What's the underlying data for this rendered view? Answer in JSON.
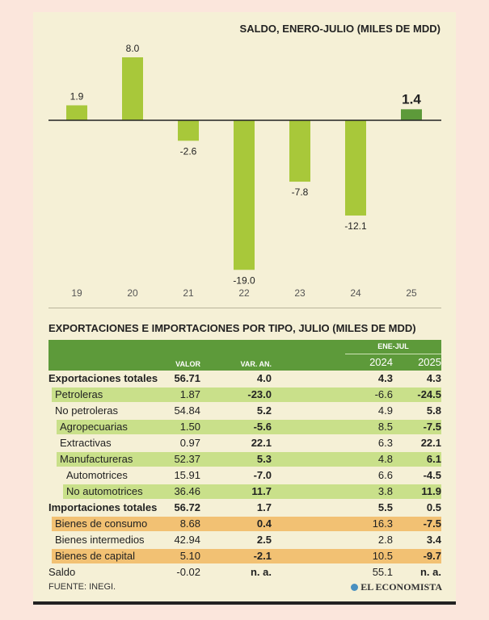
{
  "chart_data": {
    "type": "bar",
    "title": "SALDO, ENERO-JULIO (MILES DE MDD)",
    "categories": [
      "19",
      "20",
      "21",
      "22",
      "23",
      "24",
      "25"
    ],
    "values": [
      1.9,
      8.0,
      -2.6,
      -19.0,
      -7.8,
      -12.1,
      1.4
    ],
    "value_labels": [
      "1.9",
      "8.0",
      "-2.6",
      "-19.0",
      "-7.8",
      "-12.1",
      "1.4"
    ],
    "highlight_index": 6,
    "colors": {
      "bar": "#a8c83a",
      "highlight": "#5d9a3a",
      "axis": "#222222"
    },
    "xlabel": "",
    "ylabel": ""
  },
  "table": {
    "title": "EXPORTACIONES E IMPORTACIONES POR TIPO, JULIO (MILES DE MDD)",
    "group_header": "ENE-JUL",
    "headers": {
      "valor": "VALOR",
      "var": "VAR. AN.",
      "y2024": "2024",
      "y2025": "2025"
    },
    "rows": [
      {
        "label": "Exportaciones totales",
        "valor": "56.71",
        "var": "4.0",
        "y2024": "4.3",
        "y2025": "4.3",
        "style": "total",
        "bg": "none",
        "indent": 0
      },
      {
        "label": "Petroleras",
        "valor": "1.87",
        "var": "-23.0",
        "y2024": "-6.6",
        "y2025": "-24.5",
        "style": "normal",
        "bg": "green",
        "indent": 1
      },
      {
        "label": "No petroleras",
        "valor": "54.84",
        "var": "5.2",
        "y2024": "4.9",
        "y2025": "5.8",
        "style": "normal",
        "bg": "none",
        "indent": 1
      },
      {
        "label": "Agropecuarias",
        "valor": "1.50",
        "var": "-5.6",
        "y2024": "8.5",
        "y2025": "-7.5",
        "style": "normal",
        "bg": "green",
        "indent": 2
      },
      {
        "label": "Extractivas",
        "valor": "0.97",
        "var": "22.1",
        "y2024": "6.3",
        "y2025": "22.1",
        "style": "normal",
        "bg": "none",
        "indent": 2
      },
      {
        "label": "Manufactureras",
        "valor": "52.37",
        "var": "5.3",
        "y2024": "4.8",
        "y2025": "6.1",
        "style": "normal",
        "bg": "green",
        "indent": 2
      },
      {
        "label": "Automotrices",
        "valor": "15.91",
        "var": "-7.0",
        "y2024": "6.6",
        "y2025": "-4.5",
        "style": "normal",
        "bg": "none",
        "indent": 3
      },
      {
        "label": "No automotrices",
        "valor": "36.46",
        "var": "11.7",
        "y2024": "3.8",
        "y2025": "11.9",
        "style": "normal",
        "bg": "green",
        "indent": 3
      },
      {
        "label": "Importaciones totales",
        "valor": "56.72",
        "var": "1.7",
        "y2024": "5.5",
        "y2025": "0.5",
        "style": "total",
        "bg": "none",
        "indent": 0
      },
      {
        "label": "Bienes de consumo",
        "valor": "8.68",
        "var": "0.4",
        "y2024": "16.3",
        "y2025": "-7.5",
        "style": "normal",
        "bg": "orange",
        "indent": 1
      },
      {
        "label": "Bienes intermedios",
        "valor": "42.94",
        "var": "2.5",
        "y2024": "2.8",
        "y2025": "3.4",
        "style": "normal",
        "bg": "none",
        "indent": 1
      },
      {
        "label": "Bienes de capital",
        "valor": "5.10",
        "var": "-2.1",
        "y2024": "10.5",
        "y2025": "-9.7",
        "style": "normal",
        "bg": "orange",
        "indent": 1
      },
      {
        "label": "Saldo",
        "valor": "-0.02",
        "var": "n. a.",
        "y2024": "55.1",
        "y2025": "n. a.",
        "style": "normal",
        "bg": "none",
        "indent": 0
      }
    ]
  },
  "footer": {
    "source": "FUENTE: INEGI.",
    "logo": "EL ECONOMISTA"
  }
}
